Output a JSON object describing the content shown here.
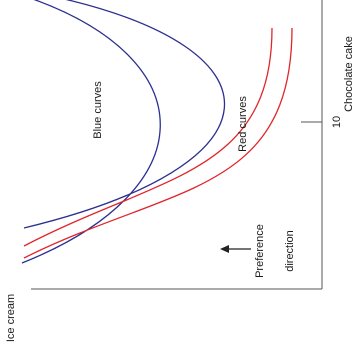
{
  "axes": {
    "x_label": "Ice cream",
    "y_label": "Chocolate cake",
    "y_tick": "10"
  },
  "labels": {
    "blue_curves": "Blue curves",
    "red_curves": "Red curves",
    "preference_line1": "Preference",
    "preference_line2": "direction"
  },
  "colors": {
    "blue": "#2b2f8f",
    "red": "#e0262b",
    "axis": "#555555"
  }
}
